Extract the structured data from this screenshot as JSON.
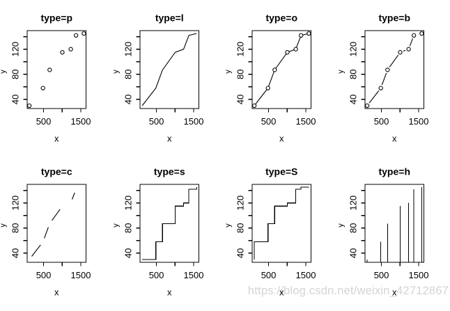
{
  "watermark": {
    "text": "https://blog.csdn.net/weixin_42712867",
    "color": "#d4d4d4"
  },
  "colors": {
    "background": "#ffffff",
    "foreground": "#000000"
  },
  "chart_data": {
    "type": "line",
    "figure_title": "",
    "layout": {
      "rows": 2,
      "cols": 4,
      "grid": false,
      "legend": "none"
    },
    "shared": {
      "x": [
        118,
        484,
        664,
        1004,
        1231,
        1372,
        1582
      ],
      "y": [
        30,
        58,
        87,
        115,
        120,
        142,
        145
      ],
      "xlabel": "x",
      "ylabel": "y",
      "xlim": [
        59.4,
        1640.6
      ],
      "ylim": [
        25.4,
        149.6
      ],
      "x_ticks": [
        500,
        1000,
        1500
      ],
      "x_tick_labels": [
        "500",
        "",
        "1500"
      ],
      "y_ticks": [
        40,
        60,
        80,
        100,
        120,
        140
      ],
      "y_tick_labels": [
        "40",
        "",
        "80",
        "",
        "120",
        ""
      ]
    },
    "panels": [
      {
        "title": "type=p",
        "type": "p"
      },
      {
        "title": "type=l",
        "type": "l"
      },
      {
        "title": "type=o",
        "type": "o"
      },
      {
        "title": "type=b",
        "type": "b"
      },
      {
        "title": "type=c",
        "type": "c"
      },
      {
        "title": "type=s",
        "type": "s"
      },
      {
        "title": "type=S",
        "type": "S"
      },
      {
        "title": "type=h",
        "type": "h"
      }
    ]
  }
}
